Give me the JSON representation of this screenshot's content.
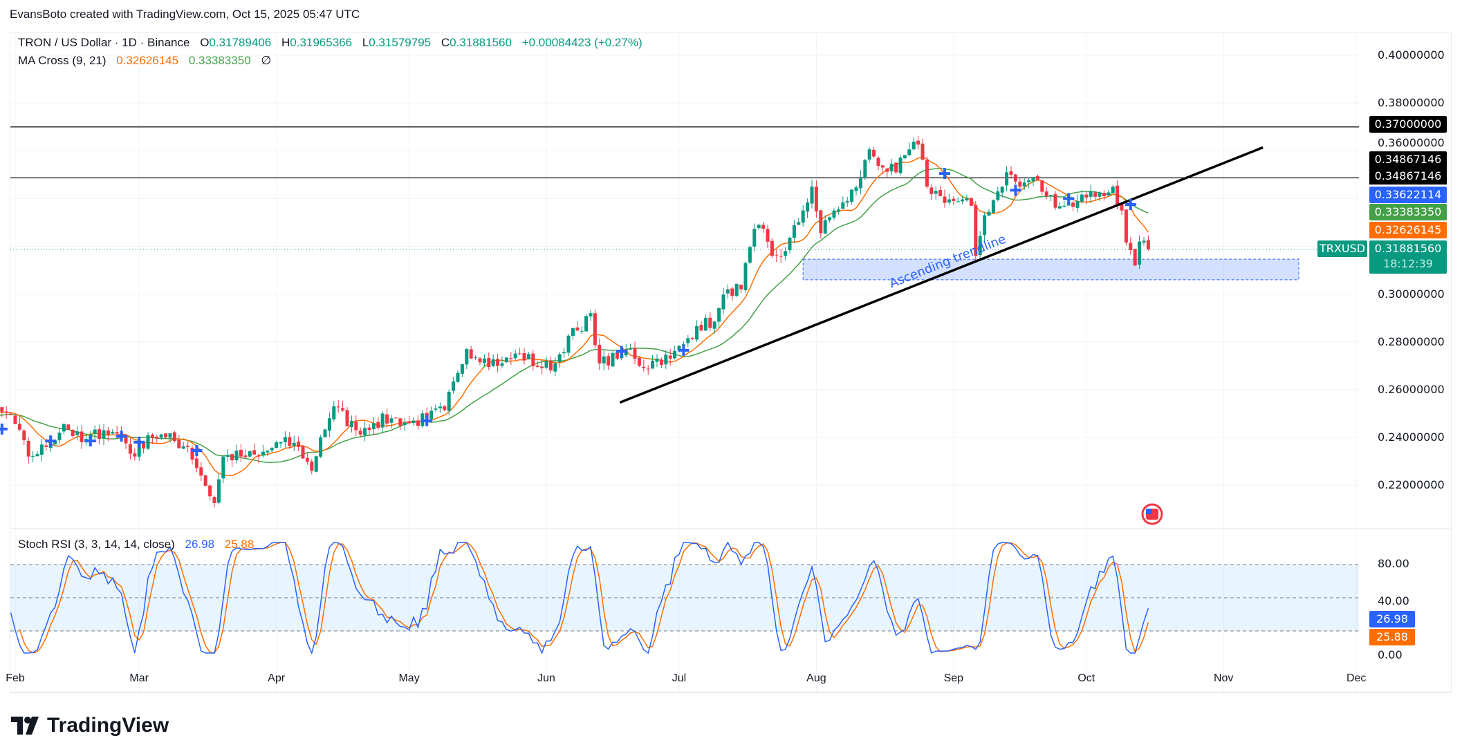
{
  "credit": "EvansBoto created with TradingView.com, Oct 15, 2025 05:47 UTC",
  "legend": {
    "symbol": "TRON / US Dollar · 1D · Binance",
    "o_label": "O",
    "open": "0.31789406",
    "h_label": "H",
    "high": "0.31965366",
    "l_label": "L",
    "low": "0.31579795",
    "c_label": "C",
    "close": "0.31881560",
    "change": "+0.00084423 (+0.27%)",
    "ma_name": "MA Cross (9, 21)",
    "ma_fast": "0.32626145",
    "ma_slow": "0.33383350",
    "ma_extra": "∅",
    "rsi_name": "Stoch RSI (3, 3, 14, 14, close)",
    "rsi_k": "26.98",
    "rsi_d": "25.88"
  },
  "price_axis": [
    "0.40000000",
    "0.38000000",
    "0.36000000",
    "0.30000000",
    "0.28000000",
    "0.26000000",
    "0.24000000",
    "0.22000000"
  ],
  "price_axis_values": [
    0.4,
    0.38,
    0.36,
    0.3,
    0.28,
    0.26,
    0.24,
    0.22
  ],
  "tags": {
    "level_370": "0.37000000",
    "level_349a": "0.34867146",
    "level_349b": "0.34867146",
    "blue": "0.33622114",
    "ma_slow": "0.33383350",
    "ma_fast": "0.32626145",
    "last": "0.31881560",
    "countdown": "18:12:39",
    "symbol": "TRXUSD"
  },
  "rsi_axis": [
    "80.00",
    "40.00",
    "0.00"
  ],
  "rsi_tags": {
    "k": "26.98",
    "d": "25.88"
  },
  "months": [
    {
      "label": "Feb",
      "day": 0
    },
    {
      "label": "Mar",
      "day": 28
    },
    {
      "label": "Apr",
      "day": 59
    },
    {
      "label": "May",
      "day": 89
    },
    {
      "label": "Jun",
      "day": 120
    },
    {
      "label": "Jul",
      "day": 150
    },
    {
      "label": "Aug",
      "day": 181
    },
    {
      "label": "Sep",
      "day": 212
    },
    {
      "label": "Oct",
      "day": 242
    },
    {
      "label": "Nov",
      "day": 273
    },
    {
      "label": "Dec",
      "day": 303
    }
  ],
  "colors": {
    "up": "#089981",
    "down": "#f23645",
    "ma_fast": "#ff6d00",
    "ma_slow": "#43a047",
    "k": "#2962ff",
    "d": "#ff6d00",
    "zone": "#2962ff"
  },
  "chart_data": {
    "type": "candlestick",
    "day_origin": "Feb 1",
    "anchors": [
      [
        -30,
        0.245
      ],
      [
        -10,
        0.25
      ],
      [
        -1,
        0.2495
      ],
      [
        3,
        0.232
      ],
      [
        7,
        0.236
      ],
      [
        11,
        0.2456
      ],
      [
        15,
        0.238
      ],
      [
        20,
        0.243
      ],
      [
        24,
        0.241
      ],
      [
        27,
        0.232
      ],
      [
        30,
        0.241
      ],
      [
        34,
        0.24
      ],
      [
        39,
        0.236
      ],
      [
        42,
        0.224
      ],
      [
        45,
        0.2125
      ],
      [
        47,
        0.232
      ],
      [
        51,
        0.232
      ],
      [
        55,
        0.232
      ],
      [
        60,
        0.238
      ],
      [
        64,
        0.236
      ],
      [
        67,
        0.226
      ],
      [
        69,
        0.24
      ],
      [
        72,
        0.253
      ],
      [
        77,
        0.243
      ],
      [
        81,
        0.246
      ],
      [
        85,
        0.248
      ],
      [
        89,
        0.246
      ],
      [
        93,
        0.248
      ],
      [
        97,
        0.2515
      ],
      [
        100,
        0.267
      ],
      [
        102,
        0.277
      ],
      [
        106,
        0.273
      ],
      [
        110,
        0.271
      ],
      [
        114,
        0.275
      ],
      [
        119,
        0.269
      ],
      [
        122,
        0.271
      ],
      [
        125,
        0.2826
      ],
      [
        128,
        0.2846
      ],
      [
        130,
        0.292
      ],
      [
        132,
        0.271
      ],
      [
        136,
        0.273
      ],
      [
        139,
        0.277
      ],
      [
        142,
        0.269
      ],
      [
        145,
        0.273
      ],
      [
        148,
        0.273
      ],
      [
        151,
        0.279
      ],
      [
        154,
        0.2866
      ],
      [
        158,
        0.2885
      ],
      [
        161,
        0.302
      ],
      [
        164,
        0.302
      ],
      [
        166,
        0.3197
      ],
      [
        168,
        0.329
      ],
      [
        171,
        0.316
      ],
      [
        174,
        0.318
      ],
      [
        178,
        0.335
      ],
      [
        180,
        0.345
      ],
      [
        182,
        0.3255
      ],
      [
        185,
        0.335
      ],
      [
        188,
        0.339
      ],
      [
        191,
        0.349
      ],
      [
        193,
        0.3606
      ],
      [
        196,
        0.353
      ],
      [
        199,
        0.351
      ],
      [
        202,
        0.3606
      ],
      [
        204,
        0.3626
      ],
      [
        206,
        0.345
      ],
      [
        209,
        0.341
      ],
      [
        212,
        0.339
      ],
      [
        216,
        0.337
      ],
      [
        217,
        0.316
      ],
      [
        219,
        0.333
      ],
      [
        222,
        0.343
      ],
      [
        224,
        0.351
      ],
      [
        227,
        0.345
      ],
      [
        230,
        0.349
      ],
      [
        233,
        0.341
      ],
      [
        237,
        0.337
      ],
      [
        240,
        0.339
      ],
      [
        243,
        0.343
      ],
      [
        246,
        0.341
      ],
      [
        248,
        0.345
      ],
      [
        250,
        0.335
      ],
      [
        251,
        0.3216
      ],
      [
        253,
        0.312
      ],
      [
        254,
        0.322
      ],
      [
        256,
        0.3188
      ]
    ],
    "first_visible_day": -4,
    "horizontal_levels": [
      0.37,
      0.34867146
    ],
    "trendline": {
      "from": [
        136.6,
        0.2546
      ],
      "to": [
        281.9,
        0.3614
      ],
      "label": "Ascending trendline"
    },
    "support_zone": {
      "from_day": 178,
      "to_day": 290,
      "top": 0.3146,
      "bottom": 0.306
    },
    "cross_markers": [
      [
        -3,
        0.2435
      ],
      [
        8,
        0.2385
      ],
      [
        17,
        0.2385
      ],
      [
        24,
        0.2405
      ],
      [
        28,
        0.238
      ],
      [
        41,
        0.2345
      ],
      [
        93,
        0.247
      ],
      [
        137,
        0.276
      ],
      [
        151,
        0.2765
      ],
      [
        210,
        0.3505
      ],
      [
        226,
        0.3435
      ],
      [
        238,
        0.34
      ],
      [
        252,
        0.3375
      ]
    ],
    "rsi_levels": [
      80,
      50,
      20
    ]
  }
}
